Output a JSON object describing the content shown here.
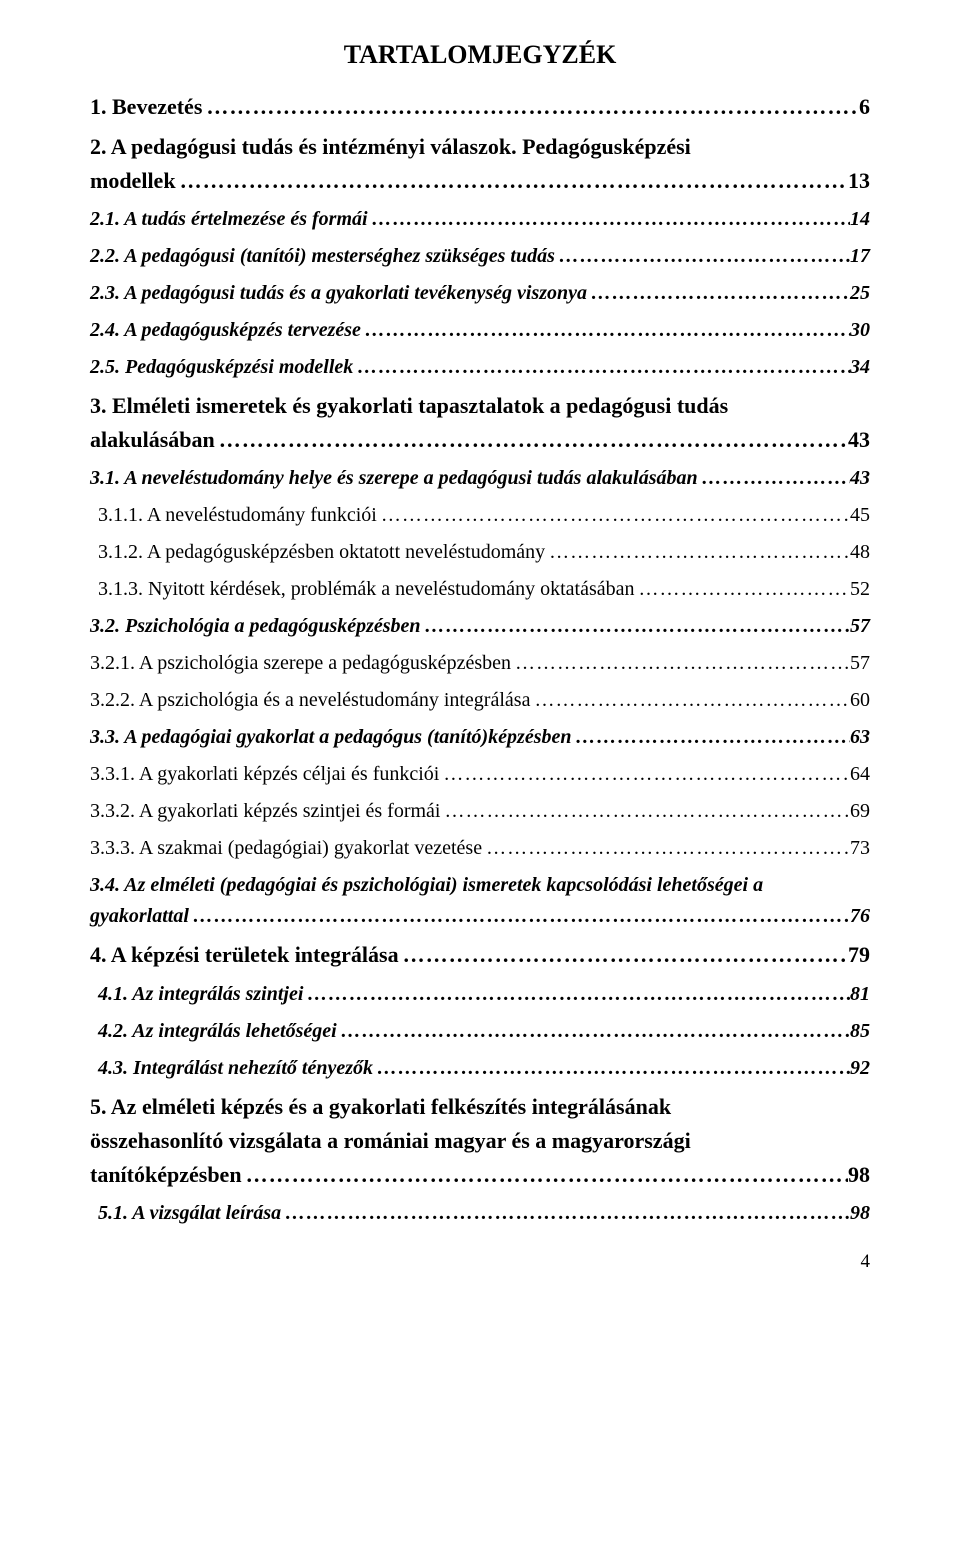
{
  "doc": {
    "title": "TARTALOMJEGYZÉK",
    "page_number": "4",
    "background_color": "#ffffff",
    "text_color": "#000000",
    "font_family": "Times New Roman",
    "title_fontsize": 26,
    "body_fontsize": 20,
    "level1_fontsize": 22,
    "leader_char": "…"
  },
  "entries": [
    {
      "id": "e1",
      "level": 1,
      "multiline": false,
      "label": "1.  Bevezetés",
      "page": "6"
    },
    {
      "id": "e2",
      "level": 1,
      "multiline": true,
      "textA": "2.  A  pedagógusi  tudás  és  intézményi  válaszok.  Pedagógusképzési",
      "label": "modellek",
      "page": "13"
    },
    {
      "id": "e3",
      "level": 2,
      "multiline": false,
      "label": "2.1. A tudás értelmezése és formái",
      "page": "14"
    },
    {
      "id": "e4",
      "level": 2,
      "multiline": false,
      "label": "2.2. A pedagógusi (tanítói) mesterséghez szükséges tudás",
      "page": "17"
    },
    {
      "id": "e5",
      "level": 2,
      "multiline": false,
      "label": "2.3. A pedagógusi tudás és a gyakorlati tevékenység viszonya",
      "page": "25"
    },
    {
      "id": "e6",
      "level": 2,
      "multiline": false,
      "label": "2.4. A pedagógusképzés tervezése",
      "page": "30"
    },
    {
      "id": "e7",
      "level": 2,
      "multiline": false,
      "label": "2.5. Pedagógusképzési modellek",
      "page": "34"
    },
    {
      "id": "e8",
      "level": 1,
      "multiline": true,
      "textA": "3.  Elméleti  ismeretek  és  gyakorlati  tapasztalatok  a  pedagógusi  tudás",
      "label": "alakulásában",
      "page": "43"
    },
    {
      "id": "e9",
      "level": 2,
      "multiline": false,
      "label": "3.1. A neveléstudomány helye és szerepe a pedagógusi tudás alakulásában",
      "page": "43"
    },
    {
      "id": "e10",
      "level": 3,
      "multiline": false,
      "label": "3.1.1.  A neveléstudomány funkciói",
      "page": "45",
      "indent": true
    },
    {
      "id": "e11",
      "level": 3,
      "multiline": false,
      "label": "3.1.2.  A pedagógusképzésben oktatott neveléstudomány",
      "page": "48",
      "indent": true
    },
    {
      "id": "e12",
      "level": 3,
      "multiline": false,
      "label": "3.1.3.  Nyitott kérdések, problémák a neveléstudomány oktatásában",
      "page": "52",
      "indent": true
    },
    {
      "id": "e13",
      "level": 2,
      "multiline": false,
      "label": "3.2. Pszichológia a pedagógusképzésben",
      "page": "57"
    },
    {
      "id": "e14",
      "level": 3,
      "multiline": false,
      "label": "3.2.1. A pszichológia szerepe a pedagógusképzésben",
      "page": "57"
    },
    {
      "id": "e15",
      "level": 3,
      "multiline": false,
      "label": "3.2.2. A pszichológia és a neveléstudomány integrálása",
      "page": "60"
    },
    {
      "id": "e16",
      "level": 2,
      "multiline": false,
      "label": "3.3. A pedagógiai gyakorlat a pedagógus  (tanító)képzésben",
      "page": "63"
    },
    {
      "id": "e17",
      "level": 3,
      "multiline": false,
      "label": "3.3.1. A gyakorlati képzés céljai és funkciói",
      "page": "64"
    },
    {
      "id": "e18",
      "level": 3,
      "multiline": false,
      "label": "3.3.2. A gyakorlati képzés szintjei és formái",
      "page": "69"
    },
    {
      "id": "e19",
      "level": 3,
      "multiline": false,
      "label": "3.3.3. A szakmai (pedagógiai) gyakorlat vezetése",
      "page": "73"
    },
    {
      "id": "e20",
      "level": 2,
      "multiline": true,
      "textA": "3.4.  Az  elméleti  (pedagógiai  és  pszichológiai)  ismeretek  kapcsolódási  lehetőségei  a",
      "label": "gyakorlattal",
      "page": "76"
    },
    {
      "id": "e21",
      "level": 1,
      "multiline": false,
      "label": "4.  A képzési területek integrálása",
      "page": "79"
    },
    {
      "id": "e22",
      "level": 2,
      "multiline": false,
      "label": "4.1. Az integrálás szintjei",
      "page": "81",
      "indent": true
    },
    {
      "id": "e23",
      "level": 2,
      "multiline": false,
      "label": "4.2. Az integrálás lehetőségei",
      "page": "85",
      "indent": true
    },
    {
      "id": "e24",
      "level": 2,
      "multiline": false,
      "label": "4.3. Integrálást nehezítő tényezők",
      "page": "92",
      "indent": true
    },
    {
      "id": "e25",
      "level": 1,
      "multiline": true,
      "textA": "5.  Az  elméleti  képzés  és  a  gyakorlati  felkészítés  integrálásának",
      "textB": "összehasonlító  vizsgálata  a  romániai  magyar  és  a  magyarországi",
      "label": "tanítóképzésben",
      "page": "98"
    },
    {
      "id": "e26",
      "level": 2,
      "multiline": false,
      "label": "5.1. A vizsgálat leírása",
      "page": "98",
      "indent": true
    }
  ]
}
